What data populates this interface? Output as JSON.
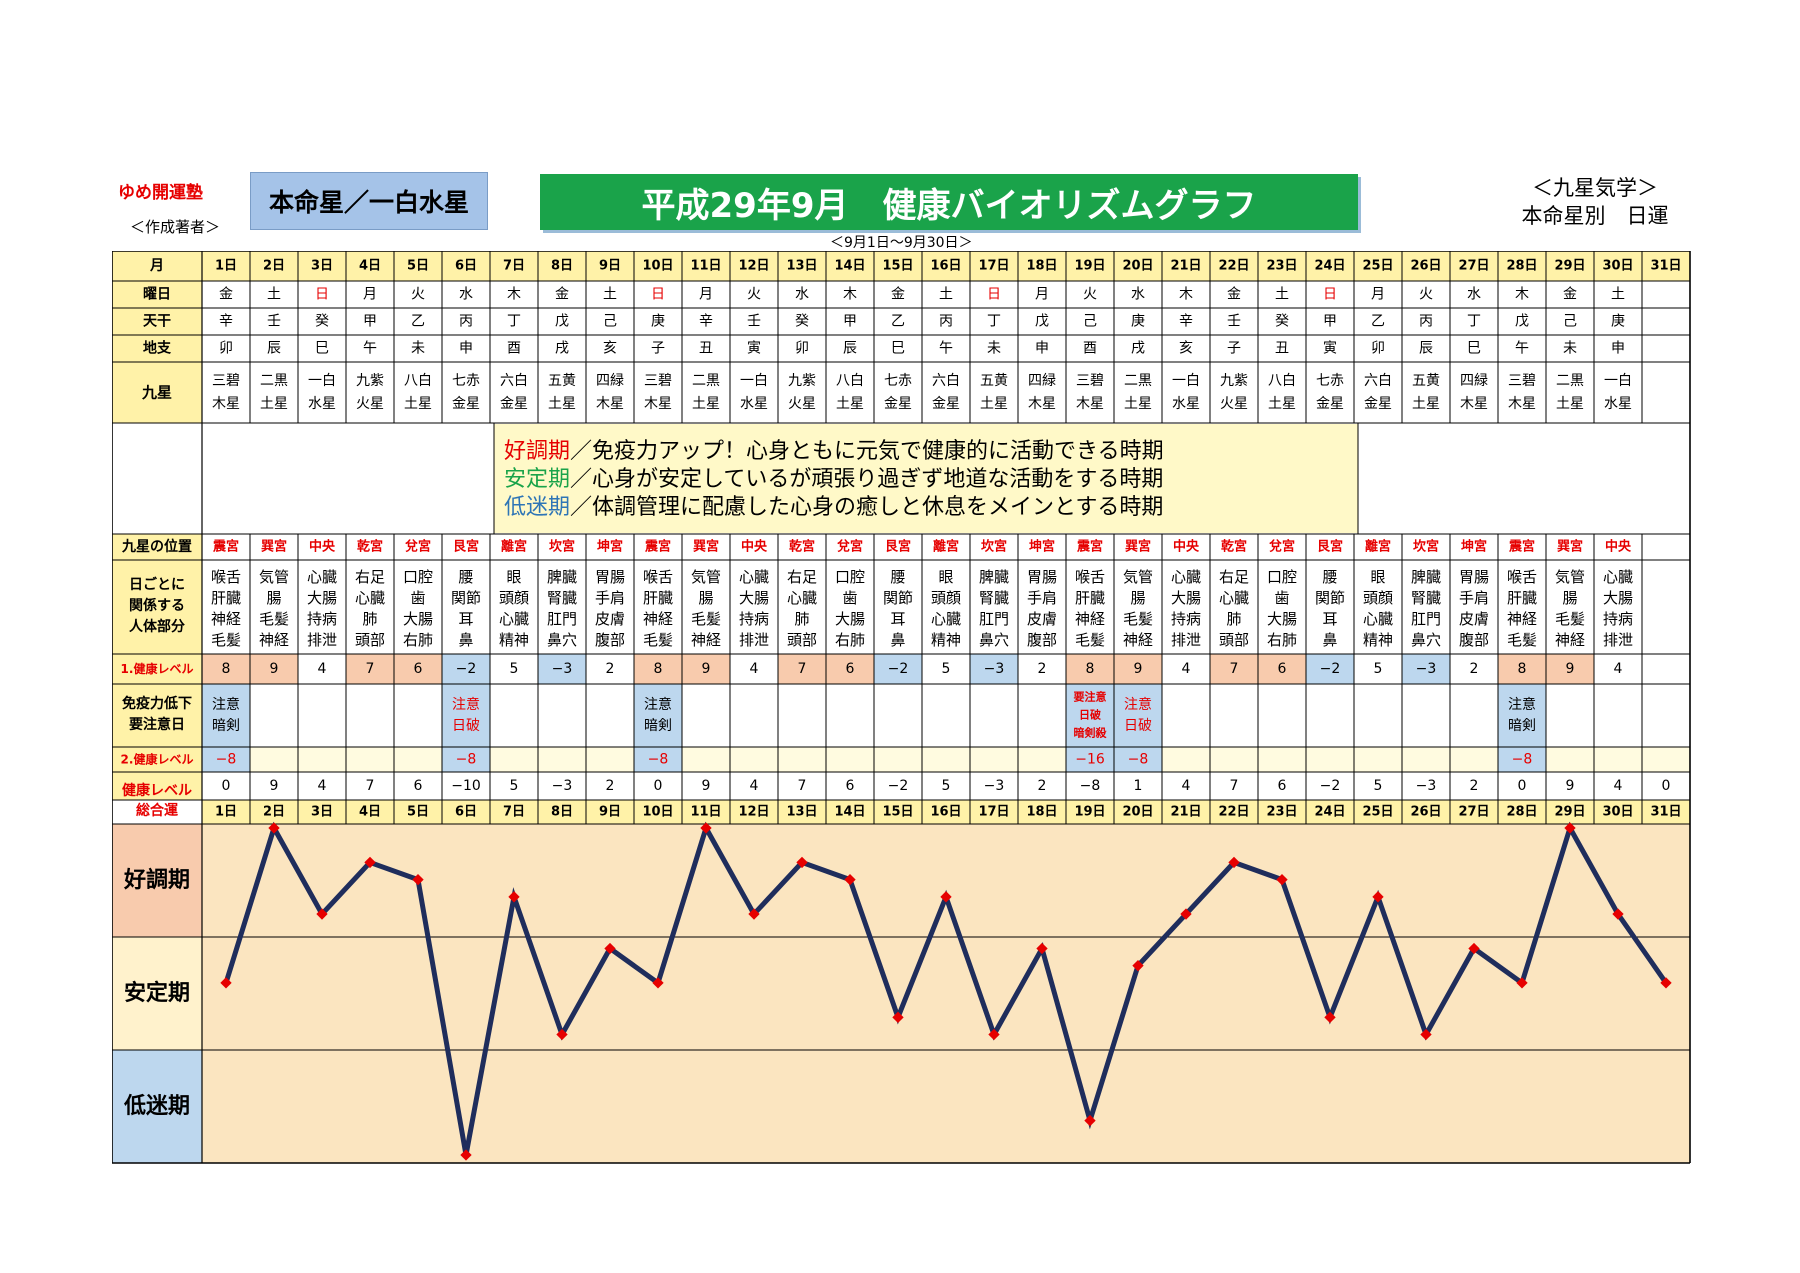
{
  "header": {
    "brand": "ゆめ開運塾",
    "author": "＜作成著者＞",
    "honmei": "本命星／一白水星",
    "title": "平成29年9月　健康バイオリズムグラフ",
    "period": "＜9月1日～9月30日＞",
    "corner_line1": "＜九星気学＞",
    "corner_line2": "本命星別　日運"
  },
  "row_labels": {
    "month": "月",
    "weekday": "曜日",
    "kan": "天干",
    "shi": "地支",
    "kyusei": "九星",
    "position": "九星の位置",
    "body": [
      "日ごとに",
      "関係する",
      "人体部分"
    ],
    "level1": "1.健康レベル",
    "immune": [
      "免疫力低下",
      "要注意日"
    ],
    "level2": "2.健康レベル",
    "total": [
      "健康レベル",
      "総合運"
    ]
  },
  "days": [
    "1日",
    "2日",
    "3日",
    "4日",
    "5日",
    "6日",
    "7日",
    "8日",
    "9日",
    "10日",
    "11日",
    "12日",
    "13日",
    "14日",
    "15日",
    "16日",
    "17日",
    "18日",
    "19日",
    "20日",
    "21日",
    "22日",
    "23日",
    "24日",
    "25日",
    "26日",
    "27日",
    "28日",
    "29日",
    "30日",
    "31日"
  ],
  "weekdays": [
    "金",
    "土",
    "日",
    "月",
    "火",
    "水",
    "木",
    "金",
    "土",
    "日",
    "月",
    "火",
    "水",
    "木",
    "金",
    "土",
    "日",
    "月",
    "火",
    "水",
    "木",
    "金",
    "土",
    "日",
    "月",
    "火",
    "水",
    "木",
    "金",
    "土",
    ""
  ],
  "kan": [
    "辛",
    "壬",
    "癸",
    "甲",
    "乙",
    "丙",
    "丁",
    "戊",
    "己",
    "庚",
    "辛",
    "壬",
    "癸",
    "甲",
    "乙",
    "丙",
    "丁",
    "戊",
    "己",
    "庚",
    "辛",
    "壬",
    "癸",
    "甲",
    "乙",
    "丙",
    "丁",
    "戊",
    "己",
    "庚",
    ""
  ],
  "shi": [
    "卯",
    "辰",
    "巳",
    "午",
    "未",
    "申",
    "酉",
    "戌",
    "亥",
    "子",
    "丑",
    "寅",
    "卯",
    "辰",
    "巳",
    "午",
    "未",
    "申",
    "酉",
    "戌",
    "亥",
    "子",
    "丑",
    "寅",
    "卯",
    "辰",
    "巳",
    "午",
    "未",
    "申",
    ""
  ],
  "kyusei": [
    [
      "三碧",
      "木星"
    ],
    [
      "二黒",
      "土星"
    ],
    [
      "一白",
      "水星"
    ],
    [
      "九紫",
      "火星"
    ],
    [
      "八白",
      "土星"
    ],
    [
      "七赤",
      "金星"
    ],
    [
      "六白",
      "金星"
    ],
    [
      "五黄",
      "土星"
    ],
    [
      "四緑",
      "木星"
    ],
    [
      "三碧",
      "木星"
    ],
    [
      "二黒",
      "土星"
    ],
    [
      "一白",
      "水星"
    ],
    [
      "九紫",
      "火星"
    ],
    [
      "八白",
      "土星"
    ],
    [
      "七赤",
      "金星"
    ],
    [
      "六白",
      "金星"
    ],
    [
      "五黄",
      "土星"
    ],
    [
      "四緑",
      "木星"
    ],
    [
      "三碧",
      "木星"
    ],
    [
      "二黒",
      "土星"
    ],
    [
      "一白",
      "水星"
    ],
    [
      "九紫",
      "火星"
    ],
    [
      "八白",
      "土星"
    ],
    [
      "七赤",
      "金星"
    ],
    [
      "六白",
      "金星"
    ],
    [
      "五黄",
      "土星"
    ],
    [
      "四緑",
      "木星"
    ],
    [
      "三碧",
      "木星"
    ],
    [
      "二黒",
      "土星"
    ],
    [
      "一白",
      "水星"
    ],
    [
      "",
      ""
    ]
  ],
  "legend": [
    {
      "head": "好調期",
      "text": "／免疫力アップ！心身ともに元気で健康的に活動できる時期",
      "color": "#e60000"
    },
    {
      "head": "安定期",
      "text": "／心身が安定しているが頑張り過ぎず地道な活動をする時期",
      "color": "#1aa34a"
    },
    {
      "head": "低迷期",
      "text": "／体調管理に配慮した心身の癒しと休息をメインとする時期",
      "color": "#2e75b6"
    }
  ],
  "positions": [
    "震宮",
    "巽宮",
    "中央",
    "乾宮",
    "兌宮",
    "艮宮",
    "離宮",
    "坎宮",
    "坤宮",
    "震宮",
    "巽宮",
    "中央",
    "乾宮",
    "兌宮",
    "艮宮",
    "離宮",
    "坎宮",
    "坤宮",
    "震宮",
    "巽宮",
    "中央",
    "乾宮",
    "兌宮",
    "艮宮",
    "離宮",
    "坎宮",
    "坤宮",
    "震宮",
    "巽宮",
    "中央",
    ""
  ],
  "body_parts": [
    [
      "喉舌",
      "肝臓",
      "神経",
      "毛髪"
    ],
    [
      "気管",
      "腸",
      "毛髪",
      "神経"
    ],
    [
      "心臓",
      "大腸",
      "持病",
      "排泄"
    ],
    [
      "右足",
      "心臓",
      "肺",
      "頭部"
    ],
    [
      "口腔",
      "歯",
      "大腸",
      "右肺"
    ],
    [
      "腰",
      "関節",
      "耳",
      "鼻"
    ],
    [
      "眼",
      "頭顔",
      "心臓",
      "精神"
    ],
    [
      "脾臓",
      "腎臓",
      "肛門",
      "鼻穴"
    ],
    [
      "胃腸",
      "手肩",
      "皮膚",
      "腹部"
    ],
    [
      "喉舌",
      "肝臓",
      "神経",
      "毛髪"
    ],
    [
      "気管",
      "腸",
      "毛髪",
      "神経"
    ],
    [
      "心臓",
      "大腸",
      "持病",
      "排泄"
    ],
    [
      "右足",
      "心臓",
      "肺",
      "頭部"
    ],
    [
      "口腔",
      "歯",
      "大腸",
      "右肺"
    ],
    [
      "腰",
      "関節",
      "耳",
      "鼻"
    ],
    [
      "眼",
      "頭顔",
      "心臓",
      "精神"
    ],
    [
      "脾臓",
      "腎臓",
      "肛門",
      "鼻穴"
    ],
    [
      "胃腸",
      "手肩",
      "皮膚",
      "腹部"
    ],
    [
      "喉舌",
      "肝臓",
      "神経",
      "毛髪"
    ],
    [
      "気管",
      "腸",
      "毛髪",
      "神経"
    ],
    [
      "心臓",
      "大腸",
      "持病",
      "排泄"
    ],
    [
      "右足",
      "心臓",
      "肺",
      "頭部"
    ],
    [
      "口腔",
      "歯",
      "大腸",
      "右肺"
    ],
    [
      "腰",
      "関節",
      "耳",
      "鼻"
    ],
    [
      "眼",
      "頭顔",
      "心臓",
      "精神"
    ],
    [
      "脾臓",
      "腎臓",
      "肛門",
      "鼻穴"
    ],
    [
      "胃腸",
      "手肩",
      "皮膚",
      "腹部"
    ],
    [
      "喉舌",
      "肝臓",
      "神経",
      "毛髪"
    ],
    [
      "気管",
      "腸",
      "毛髪",
      "神経"
    ],
    [
      "心臓",
      "大腸",
      "持病",
      "排泄"
    ],
    []
  ],
  "level1": [
    8,
    9,
    4,
    7,
    6,
    -2,
    5,
    -3,
    2,
    8,
    9,
    4,
    7,
    6,
    -2,
    5,
    -3,
    2,
    8,
    9,
    4,
    7,
    6,
    -2,
    5,
    -3,
    2,
    8,
    9,
    4,
    null
  ],
  "immune": [
    [
      "注意",
      "暗剣"
    ],
    [],
    [],
    [],
    [],
    [
      "注意",
      "日破"
    ],
    [],
    [],
    [],
    [
      "注意",
      "暗剣"
    ],
    [],
    [],
    [],
    [],
    [],
    [],
    [],
    [],
    [
      "要注意",
      "日破",
      "暗剣殺"
    ],
    [
      "注意",
      "日破"
    ],
    [],
    [],
    [],
    [],
    [],
    [],
    [],
    [
      "注意",
      "暗剣"
    ],
    [],
    [],
    []
  ],
  "level2": [
    -8,
    null,
    null,
    null,
    null,
    -8,
    null,
    null,
    null,
    -8,
    null,
    null,
    null,
    null,
    null,
    null,
    null,
    null,
    -16,
    -8,
    null,
    null,
    null,
    null,
    null,
    null,
    null,
    -8,
    null,
    null,
    null
  ],
  "zones": [
    "好調期",
    "安定期",
    "低迷期"
  ],
  "chart_data": {
    "type": "line",
    "x": [
      "1日",
      "2日",
      "3日",
      "4日",
      "5日",
      "6日",
      "7日",
      "8日",
      "9日",
      "10日",
      "11日",
      "12日",
      "13日",
      "14日",
      "15日",
      "16日",
      "17日",
      "18日",
      "19日",
      "20日",
      "21日",
      "22日",
      "23日",
      "24日",
      "25日",
      "26日",
      "27日",
      "28日",
      "29日",
      "30日",
      "31日"
    ],
    "values": [
      0,
      9,
      4,
      7,
      6,
      -10,
      5,
      -3,
      2,
      0,
      9,
      4,
      7,
      6,
      -2,
      5,
      -3,
      2,
      -8,
      1,
      4,
      7,
      6,
      -2,
      5,
      -3,
      2,
      0,
      9,
      4,
      0
    ],
    "ylim": [
      -10,
      9
    ],
    "zones": [
      "好調期",
      "安定期",
      "低迷期"
    ],
    "line_color": "#1f2d5c",
    "marker_color": "#e60000",
    "zone_colors": [
      "#f8cbad",
      "#fff2cc",
      "#bdd7ee"
    ]
  },
  "colors": {
    "header_bg": "#fff2a8",
    "pink": "#f8cbad",
    "blue": "#bdd7ee",
    "red": "#e60000",
    "chart_bg": "#fbe5c0",
    "pos_red": "#e60000"
  }
}
